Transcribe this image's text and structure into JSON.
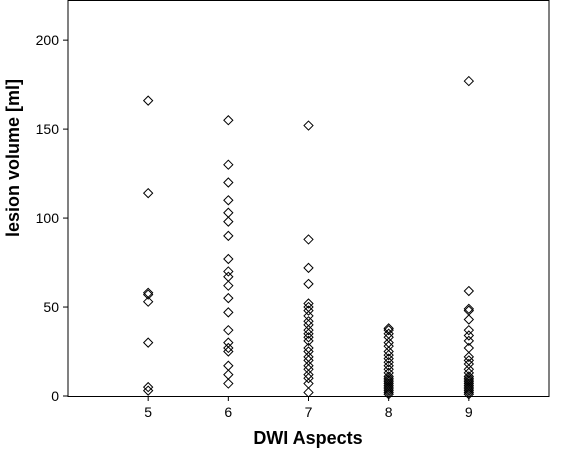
{
  "chart_data": {
    "type": "scatter",
    "title": "",
    "xlabel": "DWI Aspects",
    "ylabel": "lesion volume [ml]",
    "xlim": [
      4,
      10
    ],
    "ylim": [
      0,
      222
    ],
    "x_ticks": [
      5,
      6,
      7,
      8,
      9
    ],
    "y_ticks": [
      0,
      50,
      100,
      150,
      200
    ],
    "grid": false,
    "marker": "diamond-open",
    "series": [
      {
        "x": 5,
        "values": [
          166,
          114,
          58,
          57,
          53,
          30,
          5,
          3
        ]
      },
      {
        "x": 6,
        "values": [
          155,
          130,
          120,
          110,
          103,
          98,
          90,
          77,
          70,
          67,
          62,
          55,
          47,
          37,
          30,
          27,
          25,
          17,
          12,
          7
        ]
      },
      {
        "x": 7,
        "values": [
          152,
          88,
          72,
          63,
          52,
          50,
          48,
          45,
          42,
          40,
          37,
          35,
          33,
          31,
          27,
          25,
          22,
          20,
          17,
          15,
          12,
          10,
          7,
          2
        ]
      },
      {
        "x": 8,
        "values": [
          38,
          37,
          35,
          33,
          30,
          28,
          25,
          23,
          21,
          19,
          17,
          15,
          13,
          11,
          10,
          9,
          8,
          7,
          6,
          5,
          4,
          3,
          2,
          1
        ]
      },
      {
        "x": 9,
        "values": [
          177,
          59,
          49,
          48,
          43,
          37,
          34,
          31,
          27,
          22,
          20,
          18,
          15,
          13,
          11,
          10,
          9,
          8,
          7,
          6,
          5,
          4,
          3,
          2,
          1
        ]
      }
    ]
  }
}
